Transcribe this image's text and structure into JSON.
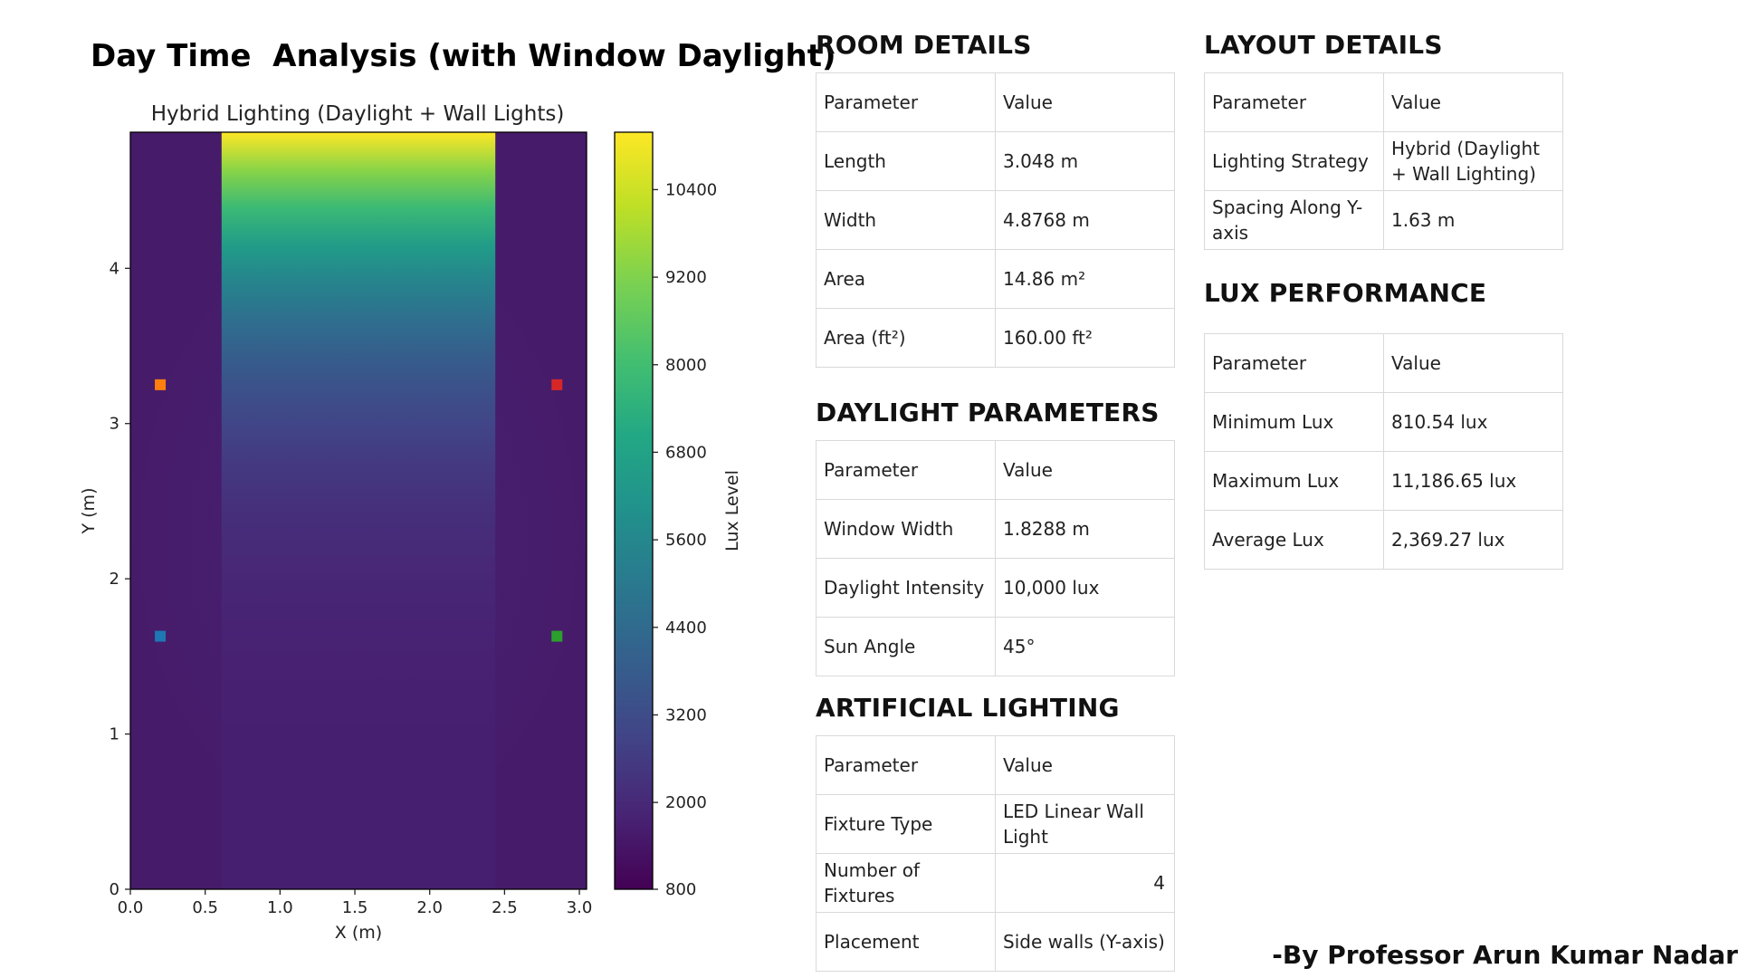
{
  "page": {
    "title": "Day Time  Analysis (with Window Daylight)",
    "author": "-By Professor Arun Kumar Nadar"
  },
  "chart_data": {
    "type": "heatmap",
    "title": "Hybrid Lighting (Daylight + Wall Lights)",
    "xlabel": "X (m)",
    "ylabel": "Y (m)",
    "colorbar_label": "Lux Level",
    "colormap": "viridis",
    "xlim": [
      0,
      3.048
    ],
    "ylim": [
      0,
      4.8768
    ],
    "x_ticks": [
      "0.0",
      "0.5",
      "1.0",
      "1.5",
      "2.0",
      "2.5",
      "3.0"
    ],
    "y_ticks": [
      "0",
      "1",
      "2",
      "3",
      "4"
    ],
    "colorbar_range": [
      810,
      11187
    ],
    "colorbar_ticks": [
      "800",
      "2000",
      "3200",
      "4400",
      "5600",
      "6800",
      "8000",
      "9200",
      "10400"
    ],
    "window_band_x": [
      0.6096,
      2.4384
    ],
    "outside_lux": 1200,
    "window_lux_bottom": 1700,
    "window_lux_top": 11187,
    "fixtures": [
      {
        "x": 0.2,
        "y": 1.63,
        "color": "#1f77b4"
      },
      {
        "x": 0.2,
        "y": 3.25,
        "color": "#ff7f0e"
      },
      {
        "x": 2.85,
        "y": 1.63,
        "color": "#2ca02c"
      },
      {
        "x": 2.85,
        "y": 3.25,
        "color": "#d62728"
      }
    ]
  },
  "room_details": {
    "heading": "ROOM DETAILS",
    "header": {
      "k": "Parameter",
      "v": "Value"
    },
    "rows": [
      {
        "k": "Length",
        "v": "3.048 m"
      },
      {
        "k": "Width",
        "v": "4.8768 m"
      },
      {
        "k": "Area",
        "v": "14.86 m²"
      },
      {
        "k": "Area (ft²)",
        "v": "160.00 ft²"
      }
    ]
  },
  "daylight_parameters": {
    "heading": "DAYLIGHT PARAMETERS",
    "header": {
      "k": "Parameter",
      "v": "Value"
    },
    "rows": [
      {
        "k": "Window Width",
        "v": "1.8288 m"
      },
      {
        "k": "Daylight Intensity",
        "v": "10,000 lux"
      },
      {
        "k": "Sun Angle",
        "v": "45°"
      }
    ]
  },
  "artificial_lighting": {
    "heading": "ARTIFICIAL LIGHTING",
    "header": {
      "k": "Parameter",
      "v": "Value"
    },
    "rows": [
      {
        "k": "Fixture Type",
        "v": "LED Linear Wall Light"
      },
      {
        "k": "Number of Fixtures",
        "v": "4"
      },
      {
        "k": "Placement",
        "v": "Side walls (Y-axis)"
      }
    ]
  },
  "layout_details": {
    "heading": "LAYOUT DETAILS",
    "header": {
      "k": "Parameter",
      "v": "Value"
    },
    "rows": [
      {
        "k": "Lighting Strategy",
        "v": "Hybrid (Daylight + Wall Lighting)"
      },
      {
        "k": "Spacing Along Y-axis",
        "v": "1.63 m"
      }
    ]
  },
  "lux_performance": {
    "heading": "LUX PERFORMANCE",
    "header": {
      "k": "Parameter",
      "v": "Value"
    },
    "rows": [
      {
        "k": "Minimum Lux",
        "v": "810.54 lux"
      },
      {
        "k": "Maximum Lux",
        "v": "11,186.65 lux"
      },
      {
        "k": "Average Lux",
        "v": "2,369.27 lux"
      }
    ]
  }
}
